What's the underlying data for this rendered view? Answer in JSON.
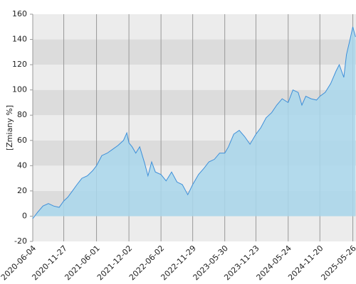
{
  "chart_data": {
    "type": "area",
    "ylabel": "[Zmiany %]",
    "x": [
      "2020-06-04",
      "2020-07-01",
      "2020-08-01",
      "2020-09-01",
      "2020-10-01",
      "2020-11-01",
      "2020-11-27",
      "2020-12-20",
      "2021-01-15",
      "2021-02-10",
      "2021-03-10",
      "2021-04-10",
      "2021-05-10",
      "2021-06-01",
      "2021-07-01",
      "2021-08-01",
      "2021-09-01",
      "2021-10-01",
      "2021-11-01",
      "2021-11-20",
      "2021-12-02",
      "2021-12-20",
      "2022-01-10",
      "2022-02-01",
      "2022-03-01",
      "2022-03-20",
      "2022-04-10",
      "2022-05-01",
      "2022-06-02",
      "2022-07-01",
      "2022-08-01",
      "2022-09-01",
      "2022-10-01",
      "2022-11-01",
      "2022-11-29",
      "2023-01-01",
      "2023-02-01",
      "2023-03-01",
      "2023-04-01",
      "2023-05-01",
      "2023-05-30",
      "2023-06-20",
      "2023-07-20",
      "2023-08-20",
      "2023-09-20",
      "2023-10-20",
      "2023-11-23",
      "2023-12-20",
      "2024-01-20",
      "2024-02-20",
      "2024-03-20",
      "2024-04-20",
      "2024-05-24",
      "2024-06-20",
      "2024-07-20",
      "2024-08-10",
      "2024-09-01",
      "2024-10-01",
      "2024-11-01",
      "2024-11-20",
      "2024-12-20",
      "2025-01-20",
      "2025-02-20",
      "2025-03-10",
      "2025-04-05",
      "2025-04-20",
      "2025-05-10",
      "2025-05-26",
      "2025-06-10"
    ],
    "values": [
      -2,
      3,
      8,
      10,
      8,
      7,
      12,
      15,
      20,
      25,
      30,
      32,
      36,
      40,
      48,
      50,
      53,
      56,
      60,
      66,
      58,
      55,
      50,
      55,
      42,
      32,
      43,
      35,
      33,
      28,
      35,
      27,
      25,
      17,
      25,
      33,
      38,
      43,
      45,
      50,
      50,
      55,
      65,
      68,
      63,
      57,
      65,
      70,
      78,
      82,
      88,
      93,
      90,
      100,
      98,
      88,
      95,
      93,
      92,
      95,
      98,
      105,
      115,
      120,
      110,
      128,
      140,
      150,
      142
    ],
    "color": "#3d8fd9",
    "fill": "#a9d7ec",
    "xlim": [
      "2020-06-04",
      "2025-06-13"
    ],
    "xticks": [
      "2020-06-04",
      "2020-11-27",
      "2021-06-01",
      "2021-12-02",
      "2022-06-02",
      "2022-11-29",
      "2023-05-30",
      "2023-11-23",
      "2024-05-24",
      "2024-11-20",
      "2025-05-26"
    ],
    "ylim": [
      -20,
      160
    ],
    "yticks": [
      -20,
      0,
      20,
      40,
      60,
      80,
      100,
      120,
      140,
      160
    ],
    "grid": true
  }
}
